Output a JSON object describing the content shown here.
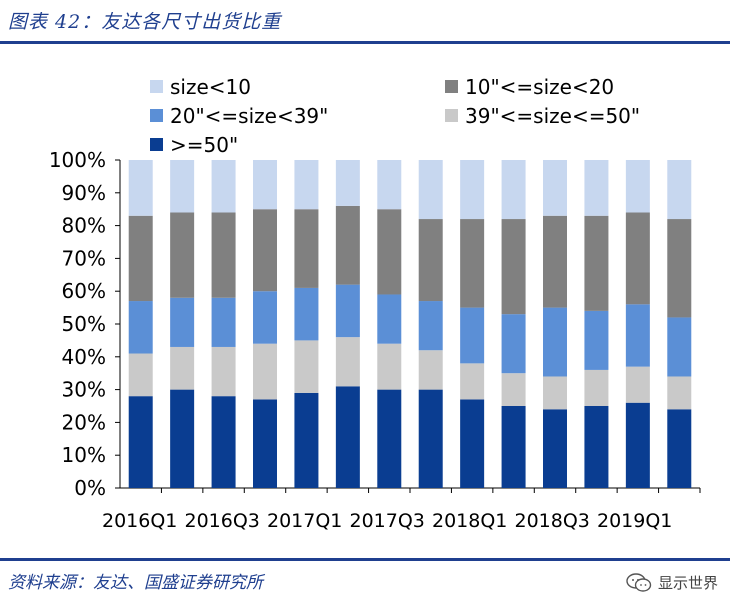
{
  "figure": {
    "title": "图表 42：友达各尺寸出货比重",
    "source": "资料来源：友达、国盛证券研究所",
    "watermark": "显示世界",
    "watermark_icon": "wechat-icon"
  },
  "chart_data": {
    "type": "bar",
    "stacked": true,
    "percent": true,
    "title": "",
    "xlabel": "",
    "ylabel": "",
    "ylim": [
      0,
      100
    ],
    "y_ticks": [
      "0%",
      "10%",
      "20%",
      "30%",
      "40%",
      "50%",
      "60%",
      "70%",
      "80%",
      "90%",
      "100%"
    ],
    "x_tick_labels": [
      "2016Q1",
      "2016Q3",
      "2017Q1",
      "2017Q3",
      "2018Q1",
      "2018Q3",
      "2019Q1"
    ],
    "categories": [
      "2016Q1",
      "2016Q2",
      "2016Q3",
      "2016Q4",
      "2017Q1",
      "2017Q2",
      "2017Q3",
      "2017Q4",
      "2018Q1",
      "2018Q2",
      "2018Q3",
      "2018Q4",
      "2019Q1",
      "2019Q2"
    ],
    "legend_position": "top",
    "series": [
      {
        "name": ">=50\"",
        "color": "#0a3d91",
        "values": [
          28,
          30,
          28,
          27,
          29,
          31,
          30,
          30,
          27,
          25,
          24,
          25,
          26,
          24
        ]
      },
      {
        "name": "39\"<=size<=50\"",
        "color": "#c9c9c9",
        "values": [
          13,
          13,
          15,
          17,
          16,
          15,
          14,
          12,
          11,
          10,
          10,
          11,
          11,
          10
        ]
      },
      {
        "name": "20\"<=size<39\"",
        "color": "#5b8fd6",
        "values": [
          16,
          15,
          15,
          16,
          16,
          16,
          15,
          15,
          17,
          18,
          21,
          18,
          19,
          18
        ]
      },
      {
        "name": "10\"<=size<20",
        "color": "#808080",
        "values": [
          26,
          26,
          26,
          25,
          24,
          24,
          26,
          25,
          27,
          29,
          28,
          29,
          28,
          30
        ]
      },
      {
        "name": "size<10",
        "color": "#c7d7ef",
        "values": [
          17,
          16,
          16,
          15,
          15,
          14,
          15,
          18,
          18,
          18,
          17,
          17,
          16,
          18
        ]
      }
    ]
  }
}
